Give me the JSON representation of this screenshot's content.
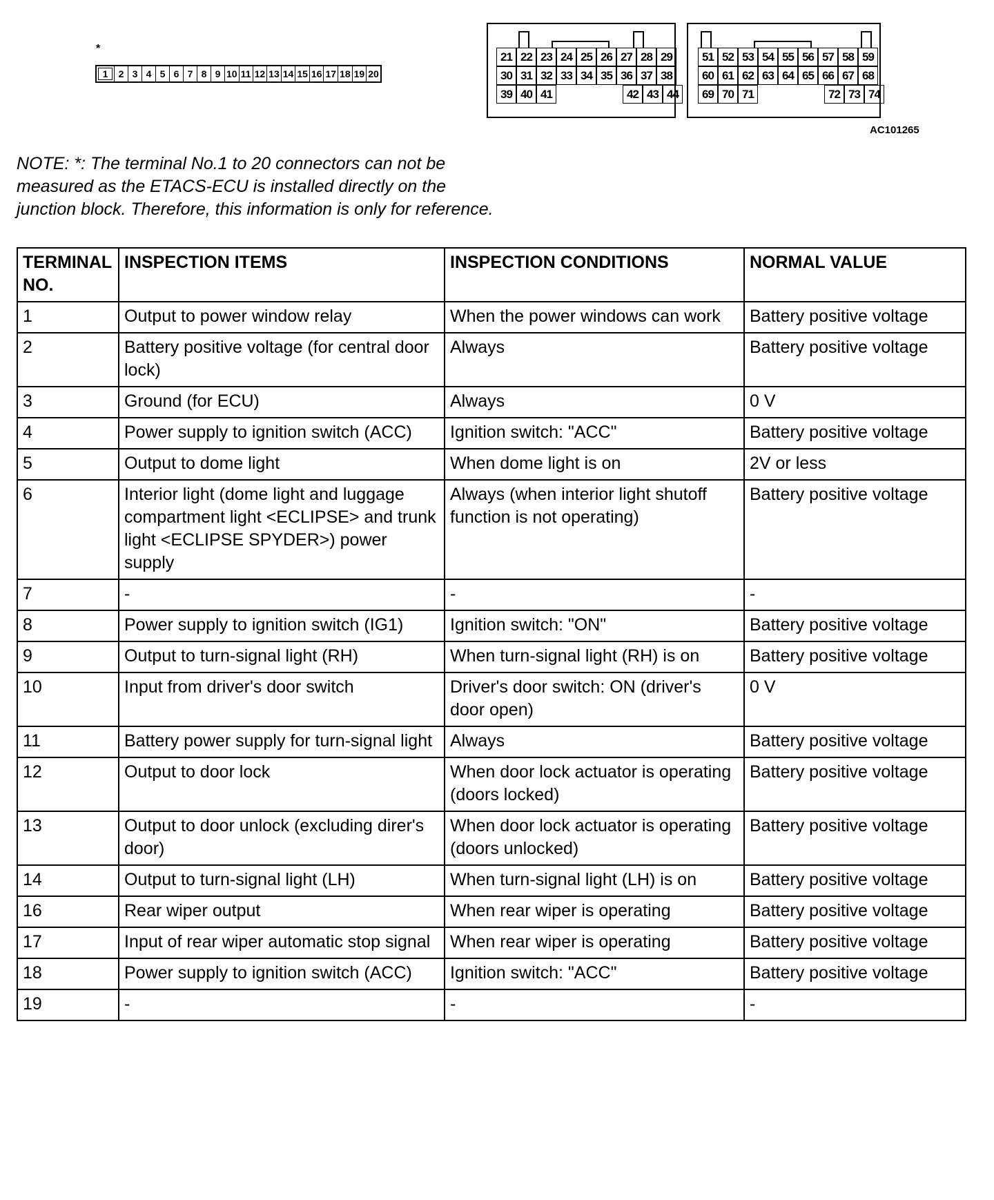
{
  "diagram": {
    "asterisk": "*",
    "small_connector_pins": [
      "1",
      "2",
      "3",
      "4",
      "5",
      "6",
      "7",
      "8",
      "9",
      "10",
      "11",
      "12",
      "13",
      "14",
      "15",
      "16",
      "17",
      "18",
      "19",
      "20"
    ],
    "connector_a": {
      "row1": [
        "21",
        "22",
        "23",
        "24",
        "25",
        "26",
        "27",
        "28",
        "29"
      ],
      "row2": [
        "30",
        "31",
        "32",
        "33",
        "34",
        "35",
        "36",
        "37",
        "38"
      ],
      "row3_left": [
        "39",
        "40",
        "41"
      ],
      "row3_right": [
        "42",
        "43",
        "44"
      ]
    },
    "connector_b": {
      "row1": [
        "51",
        "52",
        "53",
        "54",
        "55",
        "56",
        "57",
        "58",
        "59"
      ],
      "row2": [
        "60",
        "61",
        "62",
        "63",
        "64",
        "65",
        "66",
        "67",
        "68"
      ],
      "row3_left": [
        "69",
        "70",
        "71"
      ],
      "row3_right": [
        "72",
        "73",
        "74"
      ]
    },
    "figure_code": "AC101265"
  },
  "note": "NOTE: *: The terminal No.1 to 20 connectors can not be measured as the ETACS-ECU is installed directly on the junction block. Therefore, this information is only for reference.",
  "table": {
    "headers": [
      "TERMINAL NO.",
      "INSPECTION ITEMS",
      "INSPECTION CONDITIONS",
      "NORMAL VALUE"
    ],
    "rows": [
      [
        "1",
        "Output to power window relay",
        "When the power windows can work",
        "Battery positive voltage"
      ],
      [
        "2",
        "Battery positive voltage (for central door lock)",
        "Always",
        "Battery positive voltage"
      ],
      [
        "3",
        "Ground (for ECU)",
        "Always",
        "0 V"
      ],
      [
        "4",
        "Power supply to ignition switch (ACC)",
        "Ignition switch: \"ACC\"",
        "Battery positive voltage"
      ],
      [
        "5",
        "Output to dome light",
        "When dome light is on",
        "2V or less"
      ],
      [
        "6",
        "Interior light (dome light and luggage compartment light <ECLIPSE> and trunk light <ECLIPSE SPYDER>) power supply",
        "Always (when interior light shutoff function is not operating)",
        "Battery positive voltage"
      ],
      [
        "7",
        "-",
        "-",
        "-"
      ],
      [
        "8",
        "Power supply to ignition switch (IG1)",
        "Ignition switch: \"ON\"",
        "Battery positive voltage"
      ],
      [
        "9",
        "Output to turn-signal light (RH)",
        "When turn-signal light (RH) is on",
        "Battery positive voltage"
      ],
      [
        "10",
        "Input from driver's door switch",
        "Driver's door switch: ON (driver's door open)",
        "0 V"
      ],
      [
        "11",
        "Battery power supply for turn-signal light",
        "Always",
        "Battery positive voltage"
      ],
      [
        "12",
        "Output to door lock",
        "When door lock actuator is operating (doors locked)",
        "Battery positive voltage"
      ],
      [
        "13",
        "Output to door unlock (excluding direr's door)",
        "When door lock actuator is operating (doors unlocked)",
        "Battery positive voltage"
      ],
      [
        "14",
        "Output to turn-signal light (LH)",
        "When turn-signal light (LH) is on",
        "Battery positive voltage"
      ],
      [
        "16",
        "Rear wiper output",
        "When rear wiper is operating",
        "Battery positive voltage"
      ],
      [
        "17",
        "Input of rear wiper automatic stop signal",
        "When rear wiper is operating",
        "Battery positive voltage"
      ],
      [
        "18",
        "Power supply to ignition switch (ACC)",
        "Ignition switch: \"ACC\"",
        "Battery positive voltage"
      ],
      [
        "19",
        "-",
        "-",
        "-"
      ]
    ]
  }
}
